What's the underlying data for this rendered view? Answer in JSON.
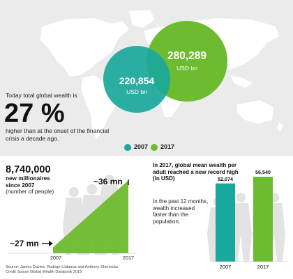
{
  "header": {
    "lead": "Today total global wealth is",
    "percent": "27 %",
    "tail": "higher than at the onset of the financial crisis a decade ago."
  },
  "bubbles": [
    {
      "value": "220,854",
      "unit": "USD bn",
      "year": "2007",
      "color": "#1aa89a"
    },
    {
      "value": "280,289",
      "unit": "USD bn",
      "year": "2017",
      "color": "#6dbb2f"
    }
  ],
  "legend": [
    {
      "label": "2007",
      "color": "#1aa89a"
    },
    {
      "label": "2017",
      "color": "#6dbb2f"
    }
  ],
  "millionaires": {
    "count": "8,740,000",
    "subtitle": "new millionaires since 2007",
    "note": "(number of people)",
    "start_label": "~27 mn",
    "end_label": "~36 mn",
    "x_start": "2007",
    "x_end": "2017"
  },
  "wealth_per_adult": {
    "headline": "In 2017, global mean wealth per adult reached a new record high (in USD)",
    "note": "In the past 12 months, wealth increased faster than the population."
  },
  "source": {
    "line1": "Source: James Davies, Rodrigo Lluberas and Anthony Shorrocks,",
    "line2": "Credit Suisse Global Wealth Databook 2016"
  },
  "chart_data": [
    {
      "type": "bubble",
      "title": "",
      "categories": [
        "2007",
        "2017"
      ],
      "values": [
        220854,
        280289
      ],
      "unit": "USD bn",
      "colors": [
        "#1aa89a",
        "#6dbb2f"
      ]
    },
    {
      "type": "area",
      "title": "",
      "x": [
        "2007",
        "2017"
      ],
      "values": [
        27,
        36
      ],
      "unit": "mn",
      "color": "#6dbb2f"
    },
    {
      "type": "bar",
      "title": "",
      "categories": [
        "2007",
        "2017"
      ],
      "values": [
        52074,
        56540
      ],
      "value_labels": [
        "52,074",
        "56,540"
      ],
      "colors": [
        "#1aa89a",
        "#6dbb2f"
      ],
      "ylim": [
        0,
        56540
      ]
    }
  ]
}
